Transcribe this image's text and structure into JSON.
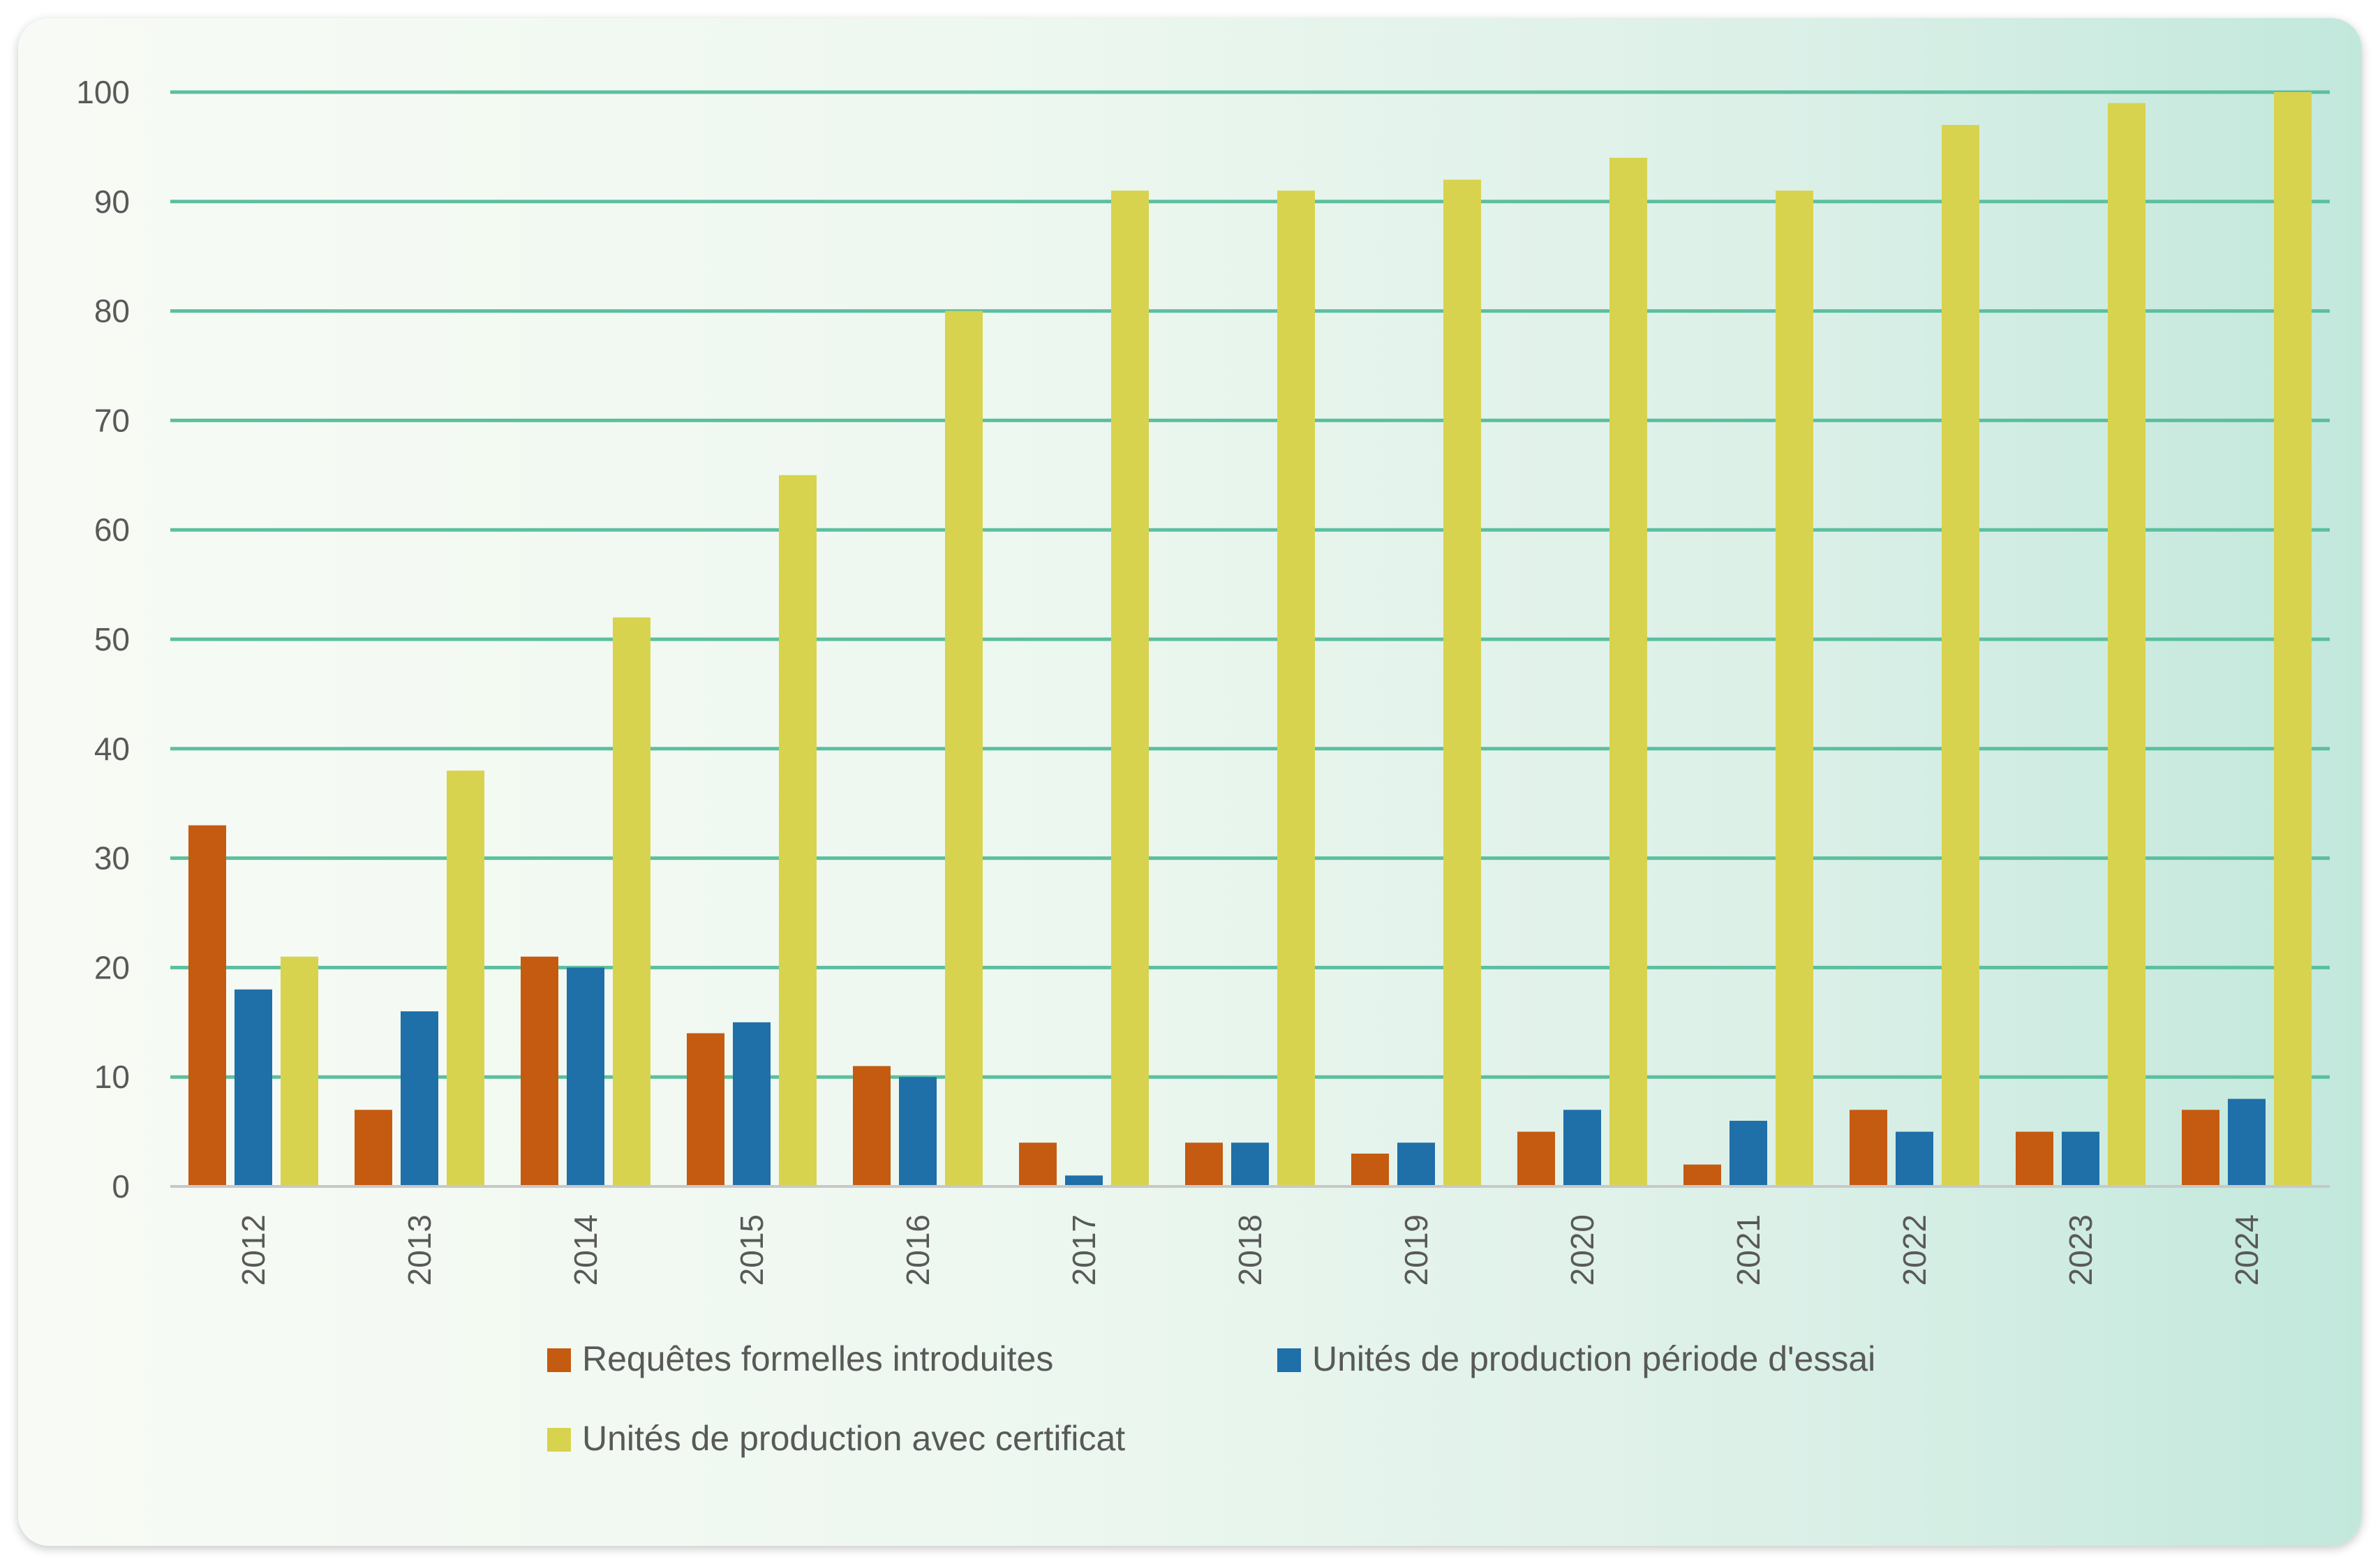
{
  "chart_data": {
    "type": "bar",
    "categories": [
      "2012",
      "2013",
      "2014",
      "2015",
      "2016",
      "2017",
      "2018",
      "2019",
      "2020",
      "2021",
      "2022",
      "2023",
      "2024"
    ],
    "series": [
      {
        "name": "Requêtes formelles introduites",
        "color": "#c55a11",
        "values": [
          33,
          7,
          21,
          14,
          11,
          4,
          4,
          3,
          5,
          2,
          7,
          5,
          7
        ]
      },
      {
        "name": "Unités de production période d'essai",
        "color": "#1f6fa8",
        "values": [
          18,
          16,
          20,
          15,
          10,
          1,
          4,
          4,
          7,
          6,
          5,
          5,
          8
        ]
      },
      {
        "name": "Unités de production avec certificat",
        "color": "#d8d34e",
        "values": [
          21,
          38,
          52,
          65,
          80,
          91,
          91,
          92,
          94,
          91,
          97,
          99,
          100
        ]
      }
    ],
    "ylim": [
      0,
      100
    ],
    "yticks": [
      0,
      10,
      20,
      30,
      40,
      50,
      60,
      70,
      80,
      90,
      100
    ],
    "grid": true,
    "grid_color": "#5bbfa0",
    "legend_position": "bottom"
  }
}
